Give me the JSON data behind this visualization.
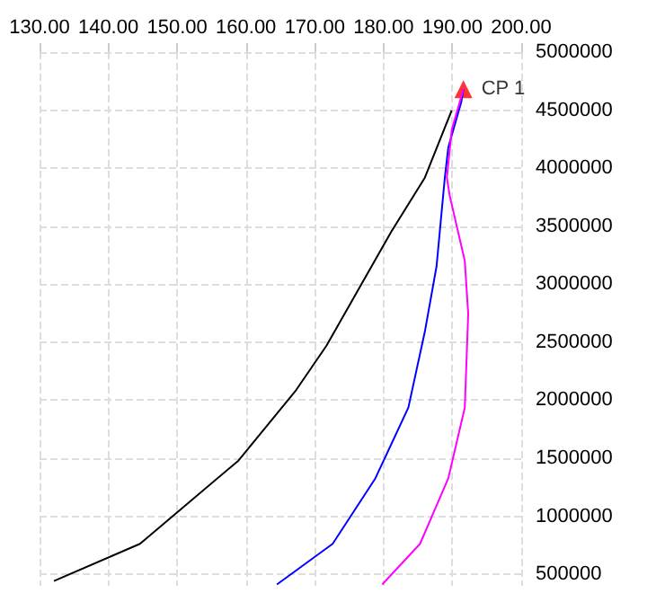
{
  "chart_data": {
    "type": "line",
    "xlim": [
      130,
      200
    ],
    "xticks": [
      {
        "value": 130,
        "label": "130.00"
      },
      {
        "value": 140,
        "label": "140.00"
      },
      {
        "value": 150,
        "label": "150.00"
      },
      {
        "value": 160,
        "label": "160.00"
      },
      {
        "value": 170,
        "label": "170.00"
      },
      {
        "value": 180,
        "label": "180.00"
      },
      {
        "value": 190,
        "label": "190.00"
      },
      {
        "value": 200,
        "label": "200.00"
      }
    ],
    "ylim": [
      400000,
      5000000
    ],
    "yticks": [
      500000,
      1000000,
      1500000,
      2000000,
      2500000,
      3000000,
      3500000,
      4000000,
      4500000,
      5000000
    ],
    "grid": true,
    "series": [
      {
        "color": "#000000",
        "marker": "none",
        "x": [
          132.1,
          144.6,
          158.9,
          167.3,
          171.7,
          181.2,
          186.0,
          189.9
        ],
        "values": [
          442000,
          762000,
          1479000,
          2088000,
          2470000,
          3460000,
          3918000,
          4497000
        ]
      },
      {
        "color": "#0000ff",
        "marker": "none",
        "x": [
          164.5,
          172.6,
          178.8,
          183.6,
          186.0,
          187.7,
          188.9,
          189.4,
          191.3,
          191.6
        ],
        "values": [
          412000,
          762000,
          1326000,
          1936000,
          2591000,
          3155000,
          3918000,
          4177000,
          4573000,
          4680000
        ]
      },
      {
        "color": "#ff00ff",
        "marker": "none",
        "x": [
          179.8,
          185.3,
          189.4,
          191.8,
          192.3,
          191.8,
          189.6,
          189.2,
          189.9,
          191.6
        ],
        "values": [
          412000,
          762000,
          1326000,
          1936000,
          2744000,
          3201000,
          3765000,
          3918000,
          4329000,
          4680000
        ]
      },
      {
        "type": "scatter",
        "name": "CP 1",
        "color": "#ff0000",
        "marker": "triangle",
        "x": [
          191.6
        ],
        "values": [
          4680000
        ]
      }
    ]
  }
}
